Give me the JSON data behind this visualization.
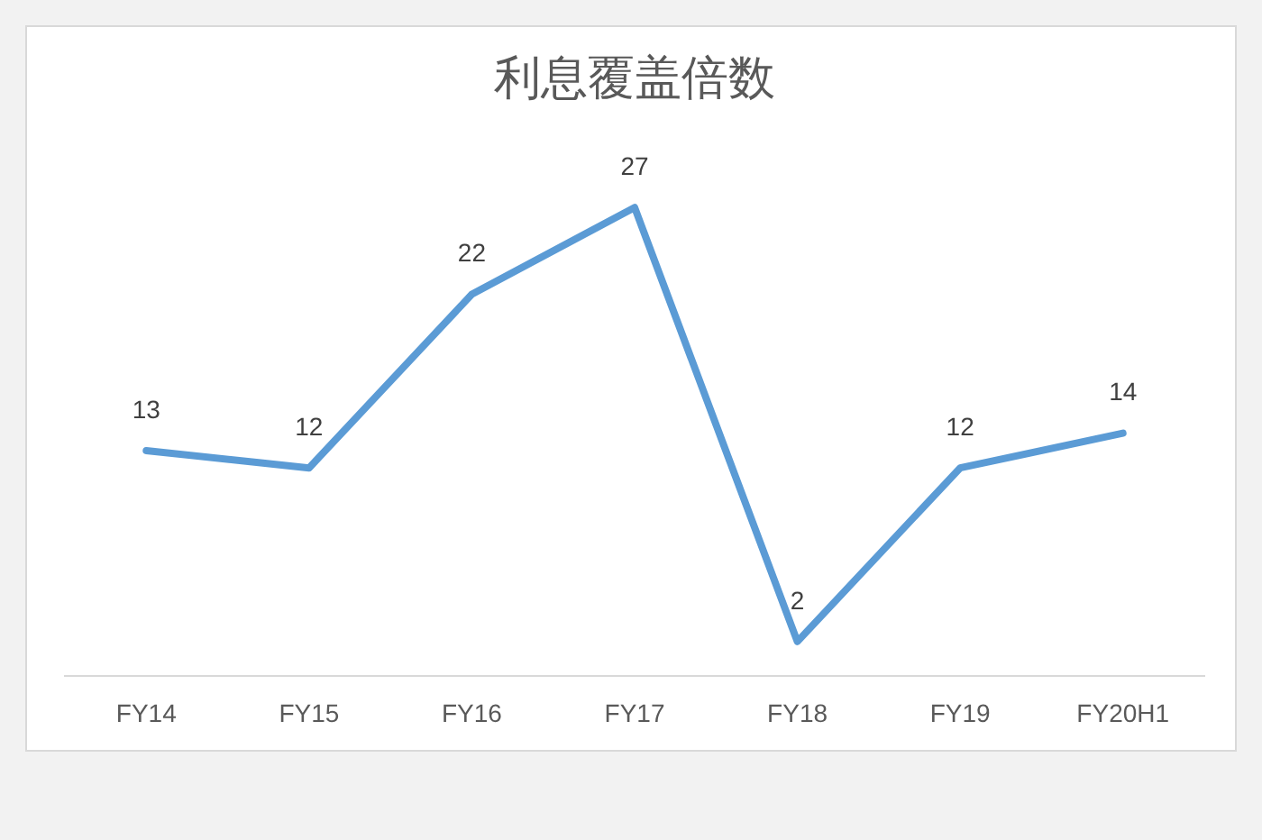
{
  "chart_data": {
    "type": "line",
    "title": "利息覆盖倍数",
    "categories": [
      "FY14",
      "FY15",
      "FY16",
      "FY17",
      "FY18",
      "FY19",
      "FY20H1"
    ],
    "series": [
      {
        "color": "#5b9bd5",
        "values": [
          13,
          12,
          22,
          27,
          2,
          12,
          14
        ]
      }
    ],
    "data_labels": true,
    "grid": false,
    "legend": false,
    "marker": "none",
    "line_style": "solid",
    "tick_labels": "x"
  }
}
